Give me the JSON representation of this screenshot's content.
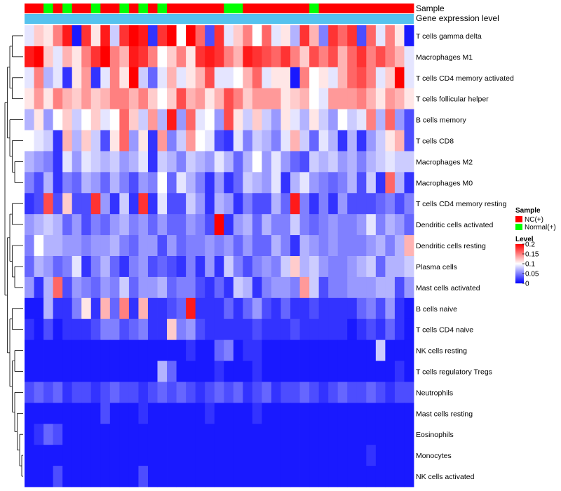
{
  "chart_data": {
    "type": "heatmap",
    "annotation_labels": [
      "Sample",
      "Gene expression level"
    ],
    "rows": [
      "T cells gamma delta",
      "Macrophages M1",
      "T cells CD4 memory activated",
      "T cells follicular helper",
      "B cells memory",
      "T cells CD8",
      "Macrophages M2",
      "Macrophages M0",
      "T cells CD4 memory resting",
      "Dendritic cells activated",
      "Dendritic cells resting",
      "Plasma cells",
      "Mast cells activated",
      "B cells naive",
      "T cells CD4 naive",
      "NK cells resting",
      "T cells regulatory  Tregs",
      "Neutrophils",
      "Mast cells resting",
      "Eosinophils",
      "Monocytes",
      "NK cells activated"
    ],
    "sample_groups": [
      "NC",
      "NC",
      "Normal",
      "NC",
      "Normal",
      "NC",
      "NC",
      "Normal",
      "NC",
      "NC",
      "Normal",
      "NC",
      "Normal",
      "NC",
      "Normal",
      "NC",
      "NC",
      "NC",
      "NC",
      "NC",
      "NC",
      "Normal",
      "Normal",
      "NC",
      "NC",
      "NC",
      "NC",
      "NC",
      "NC",
      "NC",
      "Normal",
      "NC",
      "NC",
      "NC",
      "NC",
      "NC",
      "NC",
      "NC",
      "NC",
      "NC",
      "NC"
    ],
    "level_range": [
      0,
      0.2
    ],
    "values": [
      [
        0.09,
        0.12,
        0.11,
        0.15,
        0.19,
        0.01,
        0.18,
        0.11,
        0.19,
        0.08,
        0.18,
        0.2,
        0.19,
        0.02,
        0.18,
        0.2,
        0.1,
        0.2,
        0.16,
        0.03,
        0.18,
        0.09,
        0.12,
        0.15,
        0.1,
        0.16,
        0.09,
        0.11,
        0.07,
        0.18,
        0.13,
        0.05,
        0.18,
        0.16,
        0.18,
        0.03,
        0.16,
        0.09,
        0.15,
        0.11,
        0.01
      ],
      [
        0.19,
        0.2,
        0.12,
        0.09,
        0.13,
        0.11,
        0.15,
        0.18,
        0.2,
        0.15,
        0.13,
        0.19,
        0.18,
        0.15,
        0.1,
        0.12,
        0.15,
        0.11,
        0.18,
        0.19,
        0.18,
        0.15,
        0.13,
        0.19,
        0.18,
        0.17,
        0.16,
        0.18,
        0.15,
        0.12,
        0.17,
        0.15,
        0.17,
        0.13,
        0.16,
        0.18,
        0.15,
        0.17,
        0.15,
        0.13,
        0.09
      ],
      [
        0.09,
        0.15,
        0.07,
        0.09,
        0.02,
        0.11,
        0.14,
        0.02,
        0.09,
        0.15,
        0.11,
        0.2,
        0.08,
        0.04,
        0.09,
        0.13,
        0.09,
        0.11,
        0.13,
        0.17,
        0.09,
        0.09,
        0.1,
        0.13,
        0.16,
        0.09,
        0.11,
        0.11,
        0.01,
        0.15,
        0.1,
        0.11,
        0.09,
        0.13,
        0.16,
        0.17,
        0.15,
        0.09,
        0.12,
        0.2,
        0.09
      ],
      [
        0.11,
        0.14,
        0.11,
        0.15,
        0.13,
        0.12,
        0.14,
        0.12,
        0.13,
        0.15,
        0.15,
        0.13,
        0.15,
        0.12,
        0.1,
        0.12,
        0.17,
        0.13,
        0.14,
        0.11,
        0.13,
        0.17,
        0.15,
        0.12,
        0.14,
        0.14,
        0.14,
        0.11,
        0.12,
        0.13,
        0.1,
        0.09,
        0.14,
        0.14,
        0.14,
        0.15,
        0.13,
        0.11,
        0.14,
        0.13,
        0.11
      ],
      [
        0.07,
        0.11,
        0.06,
        0.1,
        0.12,
        0.08,
        0.1,
        0.12,
        0.09,
        0.1,
        0.16,
        0.12,
        0.08,
        0.14,
        0.07,
        0.19,
        0.06,
        0.16,
        0.09,
        0.1,
        0.06,
        0.17,
        0.11,
        0.08,
        0.12,
        0.08,
        0.06,
        0.11,
        0.09,
        0.07,
        0.11,
        0.08,
        0.06,
        0.1,
        0.08,
        0.09,
        0.15,
        0.07,
        0.16,
        0.06,
        0.03
      ],
      [
        0.1,
        0.09,
        0.08,
        0.02,
        0.13,
        0.07,
        0.12,
        0.08,
        0.03,
        0.11,
        0.16,
        0.06,
        0.11,
        0.02,
        0.14,
        0.05,
        0.08,
        0.14,
        0.1,
        0.09,
        0.03,
        0.02,
        0.09,
        0.05,
        0.08,
        0.07,
        0.05,
        0.09,
        0.13,
        0.08,
        0.04,
        0.09,
        0.07,
        0.02,
        0.07,
        0.02,
        0.06,
        0.08,
        0.11,
        0.13,
        0.03
      ],
      [
        0.07,
        0.06,
        0.05,
        0.02,
        0.09,
        0.06,
        0.09,
        0.08,
        0.07,
        0.08,
        0.06,
        0.07,
        0.09,
        0.02,
        0.08,
        0.07,
        0.05,
        0.08,
        0.07,
        0.06,
        0.09,
        0.07,
        0.04,
        0.07,
        0.1,
        0.06,
        0.09,
        0.06,
        0.04,
        0.03,
        0.08,
        0.07,
        0.08,
        0.06,
        0.07,
        0.05,
        0.07,
        0.08,
        0.09,
        0.08,
        0.08
      ],
      [
        0.05,
        0.03,
        0.07,
        0.02,
        0.05,
        0.04,
        0.07,
        0.06,
        0.04,
        0.07,
        0.05,
        0.03,
        0.06,
        0.05,
        0.1,
        0.04,
        0.09,
        0.07,
        0.05,
        0.02,
        0.06,
        0.02,
        0.04,
        0.08,
        0.07,
        0.06,
        0.09,
        0.02,
        0.07,
        0.09,
        0.06,
        0.05,
        0.04,
        0.05,
        0.07,
        0.03,
        0.08,
        0.02,
        0.16,
        0.07,
        0.02
      ],
      [
        0.02,
        0.03,
        0.17,
        0.03,
        0.12,
        0.03,
        0.03,
        0.18,
        0.06,
        0.02,
        0.08,
        0.02,
        0.18,
        0.02,
        0.09,
        0.03,
        0.03,
        0.08,
        0.06,
        0.02,
        0.07,
        0.06,
        0.02,
        0.05,
        0.03,
        0.03,
        0.07,
        0.04,
        0.19,
        0.05,
        0.02,
        0.05,
        0.02,
        0.06,
        0.03,
        0.03,
        0.03,
        0.04,
        0.05,
        0.03,
        0.05
      ],
      [
        0.06,
        0.07,
        0.08,
        0.07,
        0.04,
        0.06,
        0.03,
        0.05,
        0.04,
        0.06,
        0.07,
        0.05,
        0.06,
        0.04,
        0.06,
        0.04,
        0.04,
        0.06,
        0.05,
        0.03,
        0.2,
        0.02,
        0.06,
        0.07,
        0.04,
        0.07,
        0.05,
        0.05,
        0.08,
        0.05,
        0.04,
        0.05,
        0.06,
        0.05,
        0.05,
        0.06,
        0.09,
        0.05,
        0.07,
        0.06,
        0.04
      ],
      [
        0.05,
        0.1,
        0.07,
        0.07,
        0.06,
        0.06,
        0.05,
        0.06,
        0.06,
        0.07,
        0.05,
        0.04,
        0.06,
        0.06,
        0.03,
        0.06,
        0.04,
        0.05,
        0.05,
        0.06,
        0.05,
        0.06,
        0.04,
        0.06,
        0.04,
        0.04,
        0.07,
        0.05,
        0.02,
        0.07,
        0.06,
        0.05,
        0.06,
        0.05,
        0.05,
        0.05,
        0.06,
        0.07,
        0.05,
        0.07,
        0.13
      ],
      [
        0.04,
        0.07,
        0.06,
        0.04,
        0.05,
        0.09,
        0.02,
        0.05,
        0.07,
        0.04,
        0.02,
        0.05,
        0.06,
        0.03,
        0.04,
        0.03,
        0.02,
        0.05,
        0.02,
        0.06,
        0.02,
        0.08,
        0.05,
        0.03,
        0.05,
        0.06,
        0.05,
        0.08,
        0.12,
        0.07,
        0.08,
        0.06,
        0.05,
        0.05,
        0.06,
        0.07,
        0.08,
        0.04,
        0.07,
        0.07,
        0.08
      ],
      [
        0.06,
        0.02,
        0.07,
        0.16,
        0.03,
        0.06,
        0.05,
        0.04,
        0.06,
        0.05,
        0.08,
        0.04,
        0.06,
        0.06,
        0.07,
        0.04,
        0.05,
        0.05,
        0.03,
        0.02,
        0.04,
        0.02,
        0.08,
        0.07,
        0.02,
        0.05,
        0.06,
        0.06,
        0.05,
        0.14,
        0.08,
        0.03,
        0.05,
        0.05,
        0.06,
        0.06,
        0.06,
        0.07,
        0.07,
        0.03,
        0.06
      ],
      [
        0.01,
        0.01,
        0.07,
        0.02,
        0.02,
        0.05,
        0.11,
        0.02,
        0.13,
        0.04,
        0.15,
        0.02,
        0.13,
        0.02,
        0.02,
        0.03,
        0.04,
        0.19,
        0.02,
        0.02,
        0.02,
        0.04,
        0.02,
        0.04,
        0.06,
        0.03,
        0.02,
        0.04,
        0.02,
        0.02,
        0.03,
        0.02,
        0.02,
        0.02,
        0.02,
        0.04,
        0.05,
        0.03,
        0.06,
        0.02,
        0.01
      ],
      [
        0.02,
        0.01,
        0.03,
        0.01,
        0.02,
        0.02,
        0.02,
        0.03,
        0.05,
        0.05,
        0.03,
        0.04,
        0.05,
        0.02,
        0.02,
        0.12,
        0.05,
        0.06,
        0.03,
        0.02,
        0.02,
        0.02,
        0.02,
        0.02,
        0.03,
        0.02,
        0.02,
        0.02,
        0.03,
        0.02,
        0.02,
        0.02,
        0.02,
        0.02,
        0.01,
        0.02,
        0.03,
        0.02,
        0.04,
        0.02,
        0.01
      ],
      [
        0.01,
        0.01,
        0.01,
        0.01,
        0.01,
        0.01,
        0.01,
        0.01,
        0.01,
        0.01,
        0.01,
        0.01,
        0.01,
        0.01,
        0.01,
        0.01,
        0.01,
        0.02,
        0.01,
        0.01,
        0.04,
        0.05,
        0.01,
        0.02,
        0.02,
        0.01,
        0.01,
        0.01,
        0.01,
        0.01,
        0.01,
        0.01,
        0.01,
        0.01,
        0.01,
        0.01,
        0.01,
        0.08,
        0.01,
        0.01,
        0.01
      ],
      [
        0.01,
        0.01,
        0.01,
        0.01,
        0.01,
        0.01,
        0.01,
        0.01,
        0.01,
        0.01,
        0.01,
        0.01,
        0.01,
        0.01,
        0.07,
        0.04,
        0.01,
        0.01,
        0.01,
        0.01,
        0.02,
        0.01,
        0.01,
        0.01,
        0.02,
        0.01,
        0.01,
        0.01,
        0.01,
        0.01,
        0.01,
        0.01,
        0.01,
        0.01,
        0.01,
        0.01,
        0.01,
        0.01,
        0.01,
        0.02,
        0.01
      ],
      [
        0.03,
        0.04,
        0.03,
        0.04,
        0.02,
        0.03,
        0.03,
        0.02,
        0.03,
        0.04,
        0.03,
        0.03,
        0.02,
        0.03,
        0.04,
        0.03,
        0.04,
        0.03,
        0.02,
        0.03,
        0.04,
        0.03,
        0.04,
        0.02,
        0.03,
        0.04,
        0.02,
        0.03,
        0.03,
        0.04,
        0.03,
        0.02,
        0.03,
        0.04,
        0.03,
        0.03,
        0.04,
        0.03,
        0.02,
        0.03,
        0.03
      ],
      [
        0.01,
        0.01,
        0.01,
        0.01,
        0.01,
        0.01,
        0.01,
        0.01,
        0.03,
        0.01,
        0.01,
        0.01,
        0.02,
        0.01,
        0.01,
        0.01,
        0.01,
        0.01,
        0.01,
        0.02,
        0.01,
        0.01,
        0.01,
        0.01,
        0.02,
        0.01,
        0.01,
        0.01,
        0.01,
        0.01,
        0.01,
        0.01,
        0.01,
        0.01,
        0.01,
        0.01,
        0.01,
        0.01,
        0.01,
        0.01,
        0.01
      ],
      [
        0.01,
        0.02,
        0.04,
        0.03,
        0.01,
        0.01,
        0.01,
        0.01,
        0.01,
        0.01,
        0.01,
        0.01,
        0.01,
        0.01,
        0.01,
        0.01,
        0.01,
        0.01,
        0.01,
        0.01,
        0.01,
        0.01,
        0.01,
        0.01,
        0.01,
        0.01,
        0.01,
        0.01,
        0.01,
        0.01,
        0.01,
        0.01,
        0.01,
        0.01,
        0.01,
        0.01,
        0.01,
        0.01,
        0.01,
        0.01,
        0.01
      ],
      [
        0.01,
        0.01,
        0.01,
        0.01,
        0.01,
        0.01,
        0.01,
        0.01,
        0.01,
        0.01,
        0.01,
        0.01,
        0.01,
        0.01,
        0.01,
        0.01,
        0.01,
        0.01,
        0.01,
        0.01,
        0.01,
        0.01,
        0.01,
        0.01,
        0.01,
        0.01,
        0.01,
        0.01,
        0.01,
        0.01,
        0.01,
        0.01,
        0.01,
        0.01,
        0.01,
        0.01,
        0.02,
        0.01,
        0.01,
        0.01,
        0.01
      ],
      [
        0.01,
        0.01,
        0.01,
        0.03,
        0.01,
        0.01,
        0.01,
        0.01,
        0.01,
        0.01,
        0.01,
        0.01,
        0.03,
        0.01,
        0.01,
        0.01,
        0.01,
        0.01,
        0.01,
        0.01,
        0.01,
        0.01,
        0.01,
        0.01,
        0.01,
        0.01,
        0.01,
        0.01,
        0.01,
        0.01,
        0.01,
        0.01,
        0.01,
        0.01,
        0.01,
        0.01,
        0.01,
        0.01,
        0.01,
        0.01,
        0.01
      ]
    ],
    "legend": {
      "sample_title": "Sample",
      "sample_entries": [
        {
          "label": "NC(+)",
          "color": "#ff0000"
        },
        {
          "label": "Normal(+)",
          "color": "#00ff00"
        }
      ],
      "level_title": "Level",
      "level_ticks": [
        "0.2",
        "0.15",
        "0.1",
        "0.05",
        "0"
      ],
      "level_tick_values": [
        0.2,
        0.15,
        0.1,
        0.05,
        0
      ]
    },
    "colors": {
      "low": "#0000ff",
      "mid": "#ffffff",
      "high": "#ff0000",
      "expression_bar": "#55c2ee",
      "nc": "#ff0000",
      "normal": "#00ff00"
    }
  }
}
